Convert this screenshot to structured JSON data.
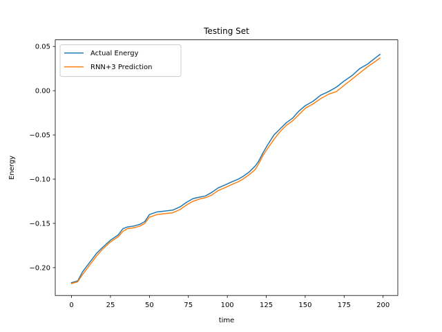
{
  "chart_data": {
    "type": "line",
    "title": "Testing Set",
    "xlabel": "time",
    "ylabel": "Energy",
    "xlim": [
      -10.45,
      209.45
    ],
    "ylim": [
      -0.2315,
      0.0575
    ],
    "xticks": [
      0,
      25,
      50,
      75,
      100,
      125,
      150,
      175,
      200
    ],
    "xtick_labels": [
      "0",
      "25",
      "50",
      "75",
      "100",
      "125",
      "150",
      "175",
      "200"
    ],
    "yticks": [
      -0.2,
      -0.15,
      -0.1,
      -0.05,
      0.0,
      0.05
    ],
    "ytick_labels": [
      "−0.20",
      "−0.15",
      "−0.10",
      "−0.05",
      "0.00",
      "0.05"
    ],
    "grid": false,
    "legend_position": "upper-left",
    "series": [
      {
        "name": "Actual Energy",
        "color": "#1f77b4",
        "x": [
          0,
          4,
          7,
          10,
          13,
          16,
          20,
          25,
          30,
          33,
          36,
          40,
          44,
          47,
          50,
          55,
          60,
          65,
          70,
          74,
          78,
          83,
          86,
          90,
          94,
          98,
          103,
          107,
          110,
          114,
          118,
          120,
          123,
          126,
          130,
          134,
          138,
          142,
          146,
          150,
          155,
          160,
          165,
          170,
          175,
          180,
          185,
          190,
          195,
          198
        ],
        "y": [
          -0.217,
          -0.215,
          -0.205,
          -0.198,
          -0.191,
          -0.184,
          -0.177,
          -0.169,
          -0.163,
          -0.156,
          -0.154,
          -0.153,
          -0.151,
          -0.148,
          -0.14,
          -0.137,
          -0.136,
          -0.135,
          -0.131,
          -0.126,
          -0.122,
          -0.12,
          -0.119,
          -0.115,
          -0.11,
          -0.107,
          -0.103,
          -0.1,
          -0.097,
          -0.092,
          -0.085,
          -0.08,
          -0.07,
          -0.061,
          -0.05,
          -0.043,
          -0.036,
          -0.031,
          -0.023,
          -0.017,
          -0.012,
          -0.005,
          -0.001,
          0.004,
          0.011,
          0.017,
          0.025,
          0.03,
          0.037,
          0.041
        ]
      },
      {
        "name": "RNN+3 Prediction",
        "color": "#ff7f0e",
        "x": [
          0,
          4,
          7,
          10,
          13,
          16,
          20,
          25,
          30,
          33,
          36,
          40,
          44,
          47,
          50,
          55,
          60,
          65,
          70,
          74,
          78,
          83,
          86,
          90,
          94,
          98,
          103,
          107,
          110,
          114,
          118,
          120,
          123,
          126,
          130,
          134,
          138,
          142,
          146,
          150,
          155,
          160,
          165,
          170,
          175,
          180,
          185,
          190,
          195,
          198
        ],
        "y": [
          -0.218,
          -0.216,
          -0.208,
          -0.201,
          -0.194,
          -0.187,
          -0.179,
          -0.171,
          -0.165,
          -0.159,
          -0.156,
          -0.155,
          -0.153,
          -0.15,
          -0.143,
          -0.14,
          -0.139,
          -0.138,
          -0.134,
          -0.129,
          -0.125,
          -0.122,
          -0.121,
          -0.118,
          -0.113,
          -0.11,
          -0.106,
          -0.103,
          -0.1,
          -0.095,
          -0.089,
          -0.083,
          -0.073,
          -0.065,
          -0.055,
          -0.046,
          -0.039,
          -0.034,
          -0.027,
          -0.02,
          -0.015,
          -0.009,
          -0.004,
          -0.001,
          0.006,
          0.013,
          0.02,
          0.027,
          0.033,
          0.037
        ]
      }
    ]
  }
}
